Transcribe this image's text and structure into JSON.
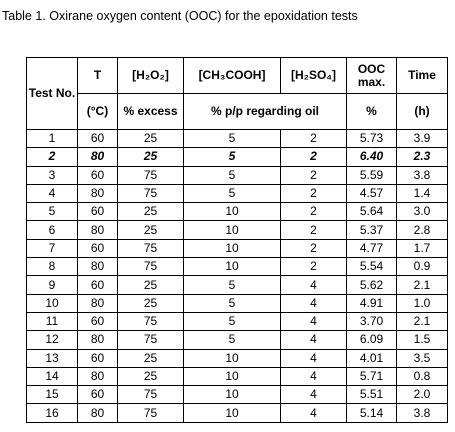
{
  "caption": "Table 1. Oxirane oxygen content (OOC) for the epoxidation tests",
  "table": {
    "header": [
      [
        "Test No.",
        "T",
        "[H₂O₂]",
        "[CH₃COOH]",
        "[H₂SO₄]",
        "OOC max.",
        "Time"
      ],
      [
        "(°C)",
        "% excess",
        "% p/p regarding oil",
        "%",
        "(h)"
      ]
    ],
    "rows": [
      {
        "cells": [
          "1",
          "60",
          "25",
          "5",
          "2",
          "5.73",
          "3.9"
        ]
      },
      {
        "cells": [
          "2",
          "80",
          "25",
          "5",
          "2",
          "6.40",
          "2.3"
        ],
        "style": "bold-italic"
      },
      {
        "cells": [
          "3",
          "60",
          "75",
          "5",
          "2",
          "5.59",
          "3.8"
        ]
      },
      {
        "cells": [
          "4",
          "80",
          "75",
          "5",
          "2",
          "4.57",
          "1.4"
        ]
      },
      {
        "cells": [
          "5",
          "60",
          "25",
          "10",
          "2",
          "5.64",
          "3.0"
        ]
      },
      {
        "cells": [
          "6",
          "80",
          "25",
          "10",
          "2",
          "5.37",
          "2.8"
        ]
      },
      {
        "cells": [
          "7",
          "60",
          "75",
          "10",
          "2",
          "4.77",
          "1.7"
        ]
      },
      {
        "cells": [
          "8",
          "80",
          "75",
          "10",
          "2",
          "5.54",
          "0.9"
        ]
      },
      {
        "cells": [
          "9",
          "60",
          "25",
          "5",
          "4",
          "5.62",
          "2.1"
        ]
      },
      {
        "cells": [
          "10",
          "80",
          "25",
          "5",
          "4",
          "4.91",
          "1.0"
        ]
      },
      {
        "cells": [
          "11",
          "60",
          "75",
          "5",
          "4",
          "3.70",
          "2.1"
        ]
      },
      {
        "cells": [
          "12",
          "80",
          "75",
          "5",
          "4",
          "6.09",
          "1.5"
        ]
      },
      {
        "cells": [
          "13",
          "60",
          "25",
          "10",
          "4",
          "4.01",
          "3.5"
        ]
      },
      {
        "cells": [
          "14",
          "80",
          "25",
          "10",
          "4",
          "5.71",
          "0.8"
        ]
      },
      {
        "cells": [
          "15",
          "60",
          "75",
          "10",
          "4",
          "5.51",
          "2.0"
        ]
      },
      {
        "cells": [
          "16",
          "80",
          "75",
          "10",
          "4",
          "5.14",
          "3.8"
        ]
      }
    ]
  }
}
